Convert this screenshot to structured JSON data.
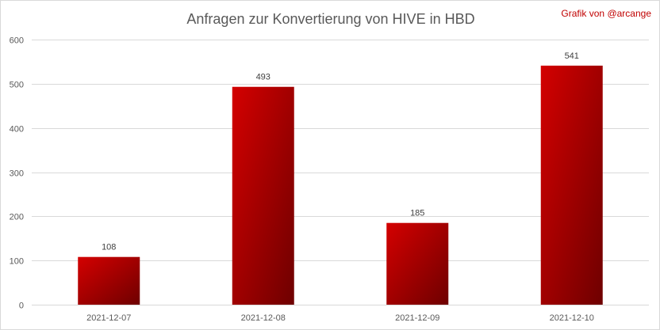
{
  "chart_data": {
    "type": "bar",
    "title": "Anfragen zur Konvertierung von HIVE in HBD",
    "credit": "Grafik von @arcange",
    "categories": [
      "2021-12-07",
      "2021-12-08",
      "2021-12-09",
      "2021-12-10"
    ],
    "values": [
      108,
      493,
      185,
      541
    ],
    "ylim": [
      0,
      600
    ],
    "yticks": [
      0,
      100,
      200,
      300,
      400,
      500,
      600
    ],
    "xlabel": "",
    "ylabel": "",
    "grid": true,
    "legend": "none",
    "colors": {
      "bar_light": "#d40000",
      "bar_dark": "#6e0000",
      "grid": "#d9d9d9",
      "text": "#595959",
      "credit": "#c00000"
    }
  }
}
